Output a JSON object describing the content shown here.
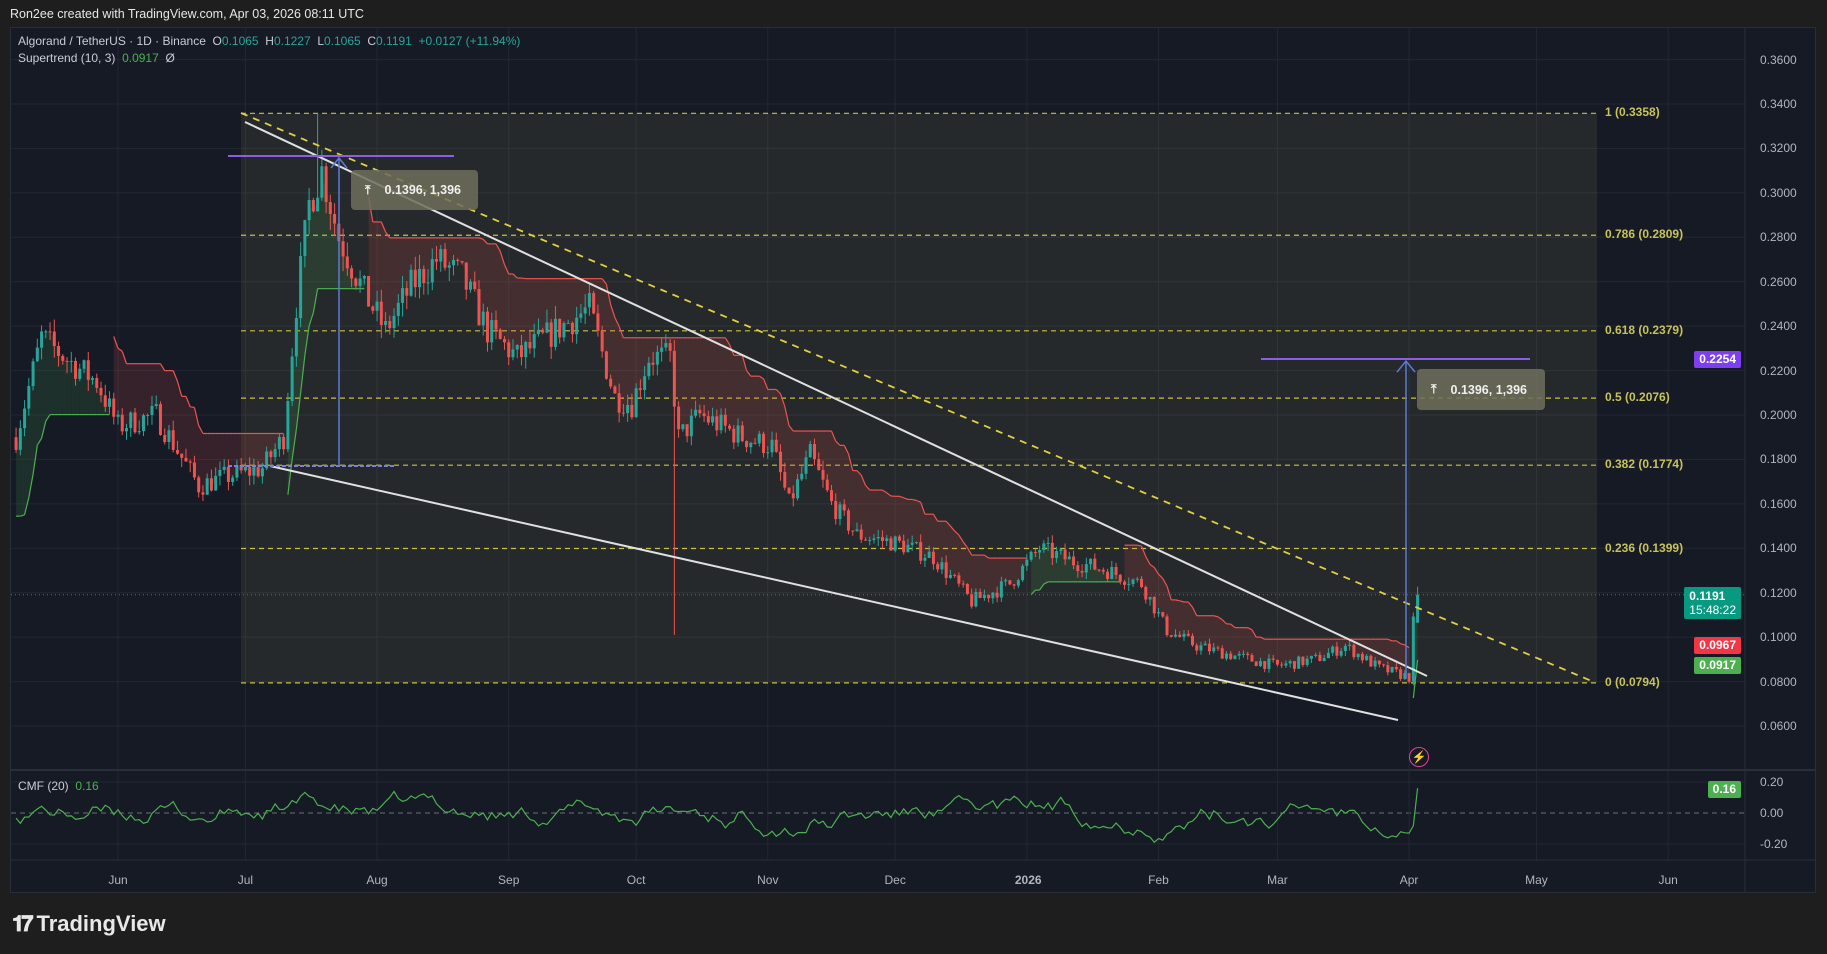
{
  "header": {
    "credit": "Ron2ee created with TradingView.com, Apr 03, 2026 08:11 UTC"
  },
  "legend": {
    "symbol": "Algorand / TetherUS · 1D · Binance",
    "o_label": "O",
    "o": "0.1065",
    "h_label": "H",
    "h": "0.1227",
    "l_label": "L",
    "l": "0.1065",
    "c_label": "C",
    "c": "0.1191",
    "change": "+0.0127 (+11.94%)",
    "supertrend_label": "Supertrend (10, 3)",
    "supertrend_value": "0.0917",
    "supertrend_extra": "Ø",
    "cmf_label": "CMF (20)",
    "cmf_value": "0.16"
  },
  "price_axis": [
    "0.3600",
    "0.3400",
    "0.3200",
    "0.3000",
    "0.2800",
    "0.2600",
    "0.2400",
    "0.2200",
    "0.2000",
    "0.1800",
    "0.1600",
    "0.1400",
    "0.1200",
    "0.1000",
    "0.0800",
    "0.0600"
  ],
  "cmf_axis": [
    "0.20",
    "0.00",
    "-0.20"
  ],
  "time_axis": [
    {
      "label": "Jun",
      "date": "2025-06-01"
    },
    {
      "label": "Jul",
      "date": "2025-07-01"
    },
    {
      "label": "Aug",
      "date": "2025-08-01"
    },
    {
      "label": "Sep",
      "date": "2025-09-01"
    },
    {
      "label": "Oct",
      "date": "2025-10-01"
    },
    {
      "label": "Nov",
      "date": "2025-11-01"
    },
    {
      "label": "Dec",
      "date": "2025-12-01"
    },
    {
      "label": "2026",
      "date": "2026-01-01"
    },
    {
      "label": "Feb",
      "date": "2026-02-01"
    },
    {
      "label": "Mar",
      "date": "2026-03-01"
    },
    {
      "label": "Apr",
      "date": "2026-04-01"
    },
    {
      "label": "May",
      "date": "2026-05-01"
    },
    {
      "label": "Jun",
      "date": "2026-06-01"
    }
  ],
  "price_tags": {
    "target": {
      "value": "0.2254",
      "color": "#7e3ff2"
    },
    "last": {
      "value": "0.1191",
      "countdown": "15:48:22",
      "color": "#089981"
    },
    "supertrend_red": {
      "value": "0.0967",
      "color": "#f23645"
    },
    "supertrend_green": {
      "value": "0.0917",
      "color": "#4caf50"
    },
    "cmf": {
      "value": "0.16",
      "color": "#4caf50"
    }
  },
  "fib_levels": [
    {
      "level": 1,
      "price": 0.3358,
      "label": "1 (0.3358)"
    },
    {
      "level": 0.786,
      "price": 0.2809,
      "label": "0.786 (0.2809)"
    },
    {
      "level": 0.618,
      "price": 0.2379,
      "label": "0.618 (0.2379)"
    },
    {
      "level": 0.5,
      "price": 0.2076,
      "label": "0.5 (0.2076)"
    },
    {
      "level": 0.382,
      "price": 0.1774,
      "label": "0.382 (0.1774)"
    },
    {
      "level": 0.236,
      "price": 0.1399,
      "label": "0.236 (0.1399)"
    },
    {
      "level": 0,
      "price": 0.0794,
      "label": "0 (0.0794)"
    }
  ],
  "measures": [
    {
      "label": "0.1396, 1,396",
      "from": 0.1774,
      "to": 0.317
    },
    {
      "label": "0.1396, 1,396",
      "from": 0.0858,
      "to": 0.2254
    }
  ],
  "colors": {
    "up": "#26a69a",
    "down": "#ef5350",
    "fib": "#c8c040",
    "trendline": "#e0e0e0",
    "measure": "#5b7bd6",
    "purple": "#8e5ce6",
    "cmf": "#4caf50"
  },
  "watermark": "TradingView",
  "chart_data": {
    "type": "candlestick",
    "title": "Algorand / TetherUS · 1D · Binance",
    "ylim": [
      0.05,
      0.365
    ],
    "close_anchors": [
      [
        "2025-05-08",
        0.19
      ],
      [
        "2025-05-14",
        0.235
      ],
      [
        "2025-05-20",
        0.225
      ],
      [
        "2025-05-27",
        0.215
      ],
      [
        "2025-06-01",
        0.195
      ],
      [
        "2025-06-10",
        0.2
      ],
      [
        "2025-06-20",
        0.168
      ],
      [
        "2025-06-26",
        0.172
      ],
      [
        "2025-07-05",
        0.176
      ],
      [
        "2025-07-10",
        0.19
      ],
      [
        "2025-07-13",
        0.25
      ],
      [
        "2025-07-16",
        0.295
      ],
      [
        "2025-07-19",
        0.31
      ],
      [
        "2025-07-23",
        0.28
      ],
      [
        "2025-07-29",
        0.255
      ],
      [
        "2025-08-03",
        0.238
      ],
      [
        "2025-08-09",
        0.258
      ],
      [
        "2025-08-15",
        0.27
      ],
      [
        "2025-08-21",
        0.262
      ],
      [
        "2025-08-27",
        0.238
      ],
      [
        "2025-09-03",
        0.226
      ],
      [
        "2025-09-12",
        0.238
      ],
      [
        "2025-09-20",
        0.248
      ],
      [
        "2025-09-26",
        0.208
      ],
      [
        "2025-09-30",
        0.205
      ],
      [
        "2025-10-04",
        0.226
      ],
      [
        "2025-10-09",
        0.226
      ],
      [
        "2025-10-11",
        0.19
      ],
      [
        "2025-10-16",
        0.2
      ],
      [
        "2025-10-26",
        0.19
      ],
      [
        "2025-11-02",
        0.186
      ],
      [
        "2025-11-06",
        0.16
      ],
      [
        "2025-11-11",
        0.182
      ],
      [
        "2025-11-16",
        0.16
      ],
      [
        "2025-11-22",
        0.146
      ],
      [
        "2025-12-02",
        0.142
      ],
      [
        "2025-12-10",
        0.136
      ],
      [
        "2025-12-19",
        0.116
      ],
      [
        "2025-12-28",
        0.124
      ],
      [
        "2026-01-04",
        0.14
      ],
      [
        "2026-01-12",
        0.134
      ],
      [
        "2026-01-20",
        0.13
      ],
      [
        "2026-01-28",
        0.124
      ],
      [
        "2026-02-03",
        0.103
      ],
      [
        "2026-02-10",
        0.096
      ],
      [
        "2026-02-20",
        0.091
      ],
      [
        "2026-03-01",
        0.087
      ],
      [
        "2026-03-10",
        0.09
      ],
      [
        "2026-03-17",
        0.096
      ],
      [
        "2026-03-25",
        0.086
      ],
      [
        "2026-04-01",
        0.082
      ],
      [
        "2026-04-02",
        0.1065
      ],
      [
        "2026-04-03",
        0.1191
      ]
    ],
    "last_ohlc": {
      "open": 0.1065,
      "high": 0.1227,
      "low": 0.1065,
      "close": 0.1191
    },
    "supertrend": {
      "period": 10,
      "multiplier": 3,
      "last": 0.0917
    },
    "cmf": {
      "period": 20,
      "last": 0.16,
      "ylim": [
        -0.3,
        0.25
      ]
    },
    "annotations": [
      "falling wedge trendlines",
      "fibonacci retracement 0.0794–0.3358",
      "price range measures 0.1396"
    ]
  }
}
